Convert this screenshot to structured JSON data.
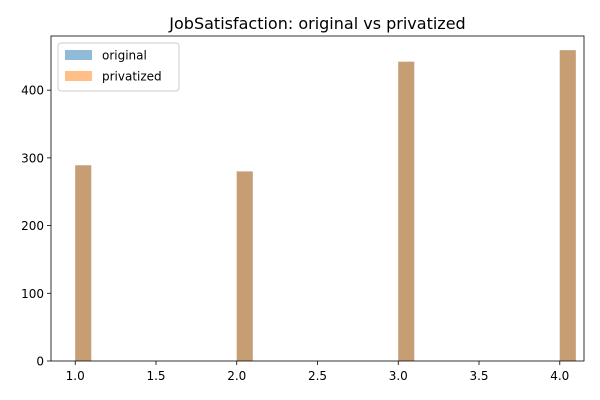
{
  "chart_data": {
    "type": "bar",
    "title": "JobSatisfaction: original vs privatized",
    "xlabel": "",
    "ylabel": "",
    "xlim": [
      0.85,
      4.15
    ],
    "ylim": [
      0,
      480
    ],
    "x_ticks": [
      1.0,
      1.5,
      2.0,
      2.5,
      3.0,
      3.5,
      4.0
    ],
    "x_tick_labels": [
      "1.0",
      "1.5",
      "2.0",
      "2.5",
      "3.0",
      "3.5",
      "4.0"
    ],
    "y_ticks": [
      0,
      100,
      200,
      300,
      400
    ],
    "y_tick_labels": [
      "0",
      "100",
      "200",
      "300",
      "400"
    ],
    "bin_width": 0.1,
    "categories": [
      1.0,
      2.0,
      3.0,
      4.0
    ],
    "series": [
      {
        "name": "original",
        "color": "#1f77b4",
        "alpha": 0.5,
        "values": [
          289,
          280,
          442,
          459
        ]
      },
      {
        "name": "privatized",
        "color": "#ff7f0e",
        "alpha": 0.5,
        "values": [
          289,
          280,
          442,
          459
        ]
      }
    ],
    "legend_position": "top-left",
    "grid": false
  }
}
